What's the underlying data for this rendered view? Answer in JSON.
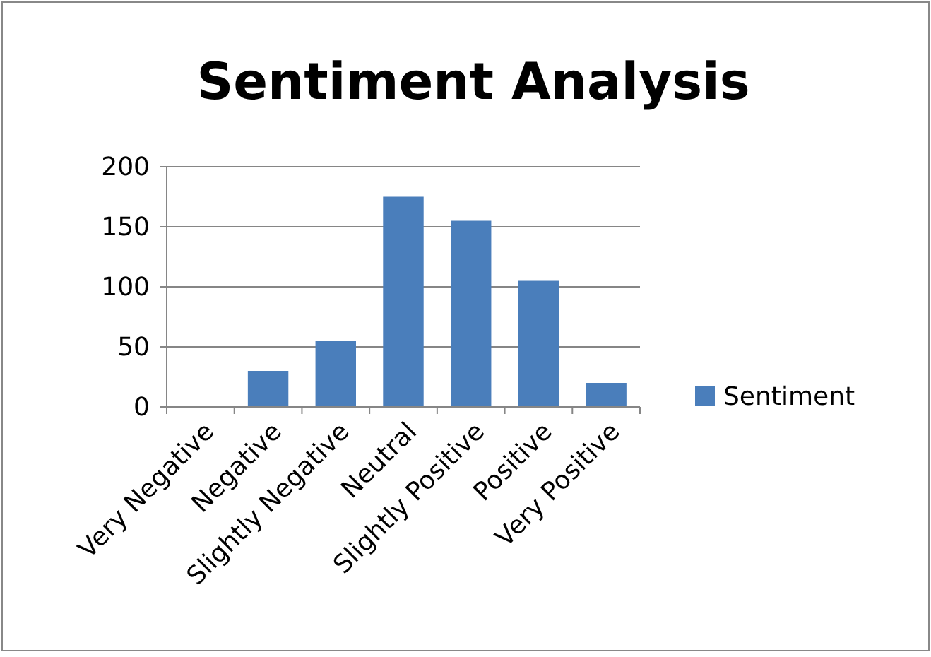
{
  "chart_data": {
    "type": "bar",
    "title": "Sentiment Analysis",
    "categories": [
      "Very Negative",
      "Negative",
      "Slightly Negative",
      "Neutral",
      "Slightly Positive",
      "Positive",
      "Very Positive"
    ],
    "series": [
      {
        "name": "Sentiment",
        "color": "#4a7ebb",
        "values": [
          0,
          30,
          55,
          175,
          155,
          105,
          20
        ]
      }
    ],
    "ylim": [
      0,
      200
    ],
    "yticks": [
      0,
      50,
      100,
      150,
      200
    ],
    "grid": "y",
    "legend": "right"
  }
}
